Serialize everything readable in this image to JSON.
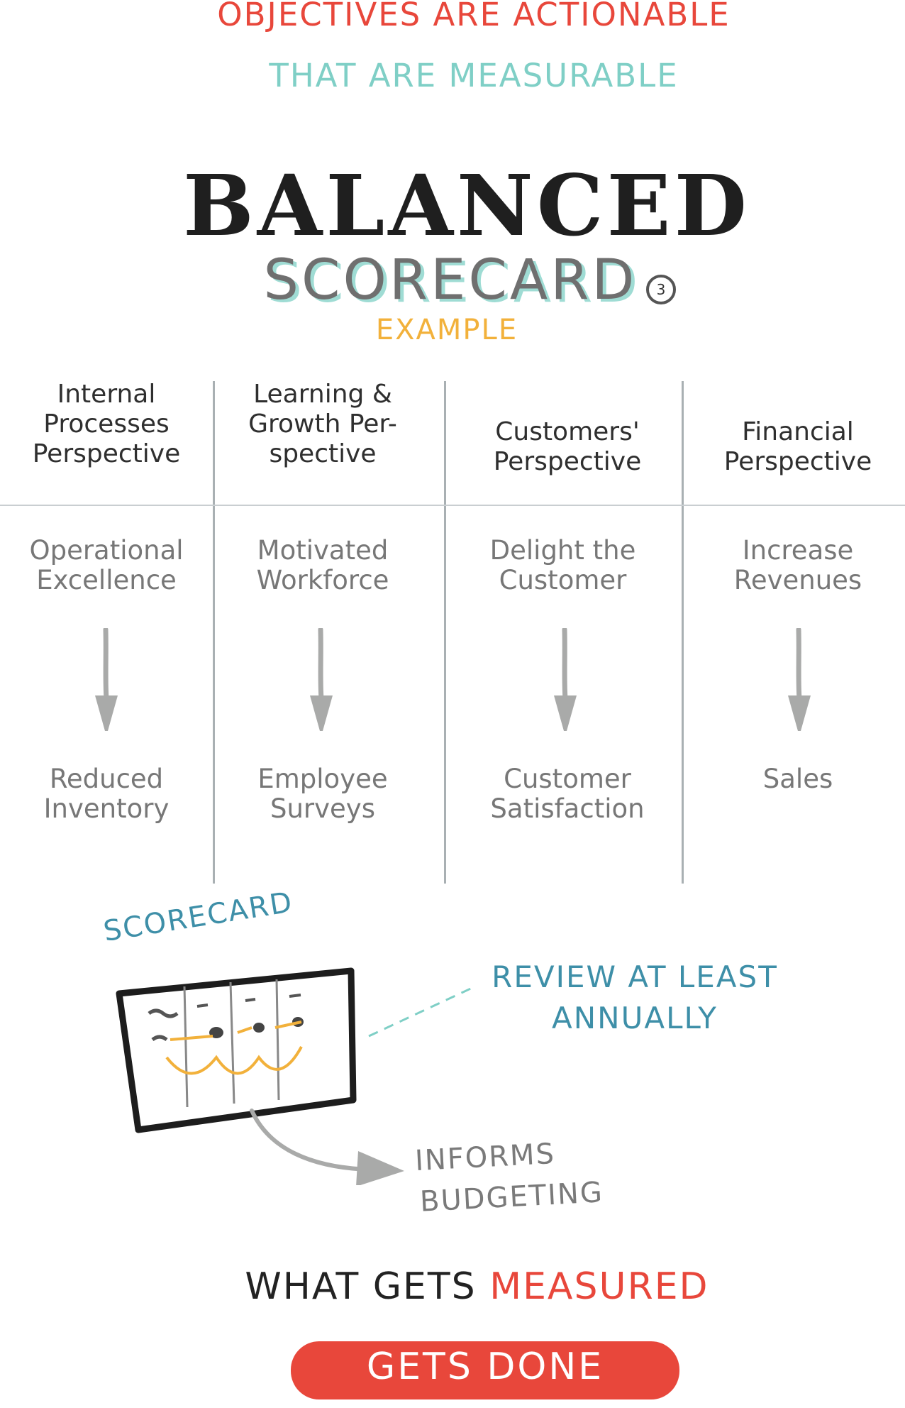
{
  "header": {
    "line1": "OBJECTIVES ARE ACTIONABLE",
    "line2": "THAT ARE MEASURABLE",
    "title": "BALANCED",
    "subtitle": "SCORECARD",
    "badge": "3",
    "example": "EXAMPLE"
  },
  "columns": [
    {
      "head": [
        "Internal",
        "Processes",
        "Perspective"
      ],
      "objective": [
        "Operational",
        "Excellence"
      ],
      "measure": [
        "Reduced",
        "Inventory"
      ]
    },
    {
      "head": [
        "Learning &",
        "Growth Per-",
        "spective"
      ],
      "objective": [
        "Motivated",
        "Workforce"
      ],
      "measure": [
        "Employee",
        "Surveys"
      ]
    },
    {
      "head": [
        "Customers'",
        "Perspective"
      ],
      "objective": [
        "Delight the",
        "Customer"
      ],
      "measure": [
        "Customer",
        "Satisfaction"
      ]
    },
    {
      "head": [
        "Financial",
        "Perspective"
      ],
      "objective": [
        "Increase",
        "Revenues"
      ],
      "measure": [
        "Sales"
      ]
    }
  ],
  "bottom": {
    "scorecard_label": "SCORECARD",
    "review_line1": "REVIEW AT LEAST",
    "review_line2": "ANNUALLY",
    "informs_line1": "INFORMS",
    "informs_line2": "BUDGETING",
    "what_gets": "WHAT GETS",
    "measured": "MEASURED",
    "gets_done": "GETS DONE"
  },
  "colors": {
    "red": "#e8473b",
    "teal": "#7fcfc6",
    "blue": "#3e8fa8",
    "orange": "#f2b13b",
    "grey": "#a9b0b3"
  }
}
